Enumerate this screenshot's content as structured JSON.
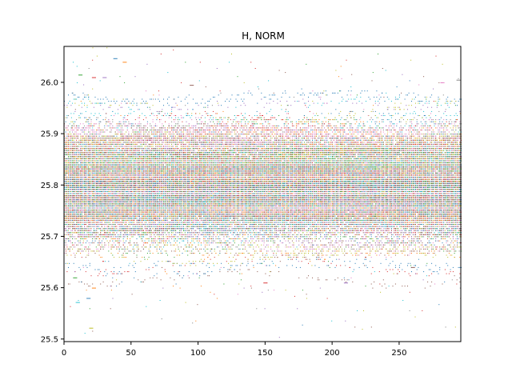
{
  "chart_data": {
    "type": "scatter",
    "title": "H, NORM",
    "xlabel": "",
    "ylabel": "",
    "xlim": [
      0,
      296
    ],
    "ylim": [
      25.495,
      26.07
    ],
    "x_ticks": [
      0,
      50,
      100,
      150,
      200,
      250
    ],
    "x_tick_labels": [
      "0",
      "50",
      "100",
      "150",
      "200",
      "250"
    ],
    "y_ticks": [
      25.5,
      25.6,
      25.7,
      25.8,
      25.9,
      26.0
    ],
    "y_tick_labels": [
      "25.5",
      "25.6",
      "25.7",
      "25.8",
      "25.9",
      "26.0"
    ],
    "grid": false,
    "legend": "none",
    "marker": "pixel",
    "series_colors": [
      "#1f77b4",
      "#ff7f0e",
      "#2ca02c",
      "#d62728",
      "#9467bd",
      "#8c564b",
      "#e377c2",
      "#7f7f7f",
      "#bcbd22",
      "#17becf"
    ],
    "distribution": {
      "x_range": [
        0,
        296
      ],
      "center": 25.8,
      "dense_band": [
        25.73,
        25.88
      ],
      "observed_min": 25.522,
      "observed_max": 26.047
    },
    "extreme_points": [
      {
        "x": 38,
        "y": 26.047
      },
      {
        "x": 45,
        "y": 26.04
      },
      {
        "x": 12,
        "y": 26.015
      },
      {
        "x": 22,
        "y": 26.01
      },
      {
        "x": 30,
        "y": 26.01
      },
      {
        "x": 95,
        "y": 25.995
      },
      {
        "x": 282,
        "y": 26.0
      },
      {
        "x": 294,
        "y": 26.005
      },
      {
        "x": 20,
        "y": 25.522
      },
      {
        "x": 10,
        "y": 25.572
      },
      {
        "x": 18,
        "y": 25.58
      },
      {
        "x": 22,
        "y": 25.6
      },
      {
        "x": 8,
        "y": 25.62
      },
      {
        "x": 150,
        "y": 25.61
      },
      {
        "x": 210,
        "y": 25.61
      },
      {
        "x": 260,
        "y": 25.64
      }
    ]
  }
}
